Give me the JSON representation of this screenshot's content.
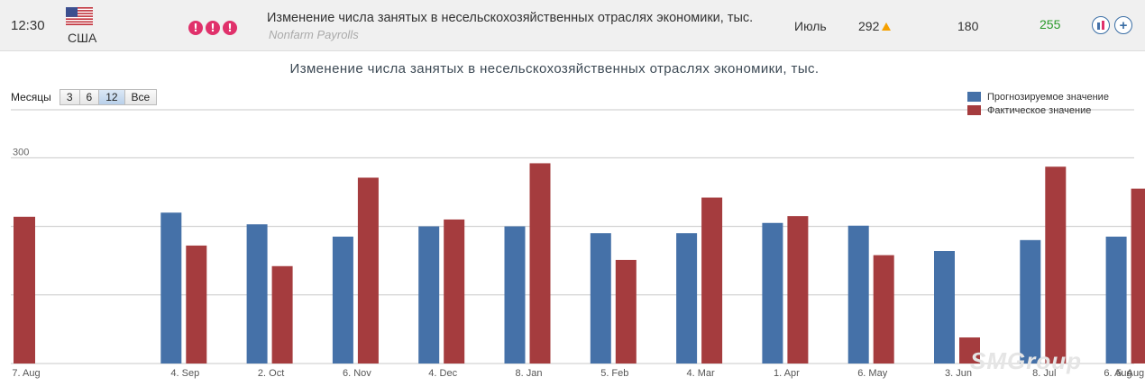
{
  "header": {
    "time": "12:30",
    "country": "США",
    "importance_marks": [
      "!",
      "!",
      "!"
    ],
    "event_title": "Изменение числа занятых в несельскохозяйственных отраслях экономики, тыс.",
    "event_subtitle": "Nonfarm Payrolls",
    "period": "Июль",
    "actual": "292",
    "forecast": "180",
    "previous": "255",
    "plus_label": "+"
  },
  "colors": {
    "forecast_bar": "#4571a8",
    "actual_bar": "#a53c3e",
    "importance": "#e0316b",
    "previous_value": "#2a9a2a"
  },
  "chart_data": {
    "type": "bar",
    "title": "Изменение числа занятых в несельскохозяйственных отраслях экономики, тыс.",
    "range_selector": {
      "label": "Месяцы",
      "options": [
        "3",
        "6",
        "12",
        "Все"
      ],
      "selected": "12"
    },
    "legend_position": "top-right",
    "categories": [
      "7. Aug",
      "4. Sep",
      "2. Oct",
      "6. Nov",
      "4. Dec",
      "8. Jan",
      "5. Feb",
      "4. Mar",
      "1. Apr",
      "6. May",
      "3. Jun",
      "8. Jul",
      "5. Aug"
    ],
    "last_tick_label": "6. Aug",
    "series": [
      {
        "name": "Прогнозируемое значение",
        "values": [
          null,
          220,
          203,
          185,
          200,
          200,
          190,
          190,
          205,
          201,
          164,
          180,
          185
        ]
      },
      {
        "name": "Фактическое значение",
        "values": [
          214,
          172,
          142,
          271,
          210,
          292,
          151,
          242,
          215,
          158,
          38,
          287,
          255
        ]
      }
    ],
    "y_tick_labels": [
      "300"
    ],
    "ylim": [
      0,
      370
    ],
    "grid": true
  }
}
